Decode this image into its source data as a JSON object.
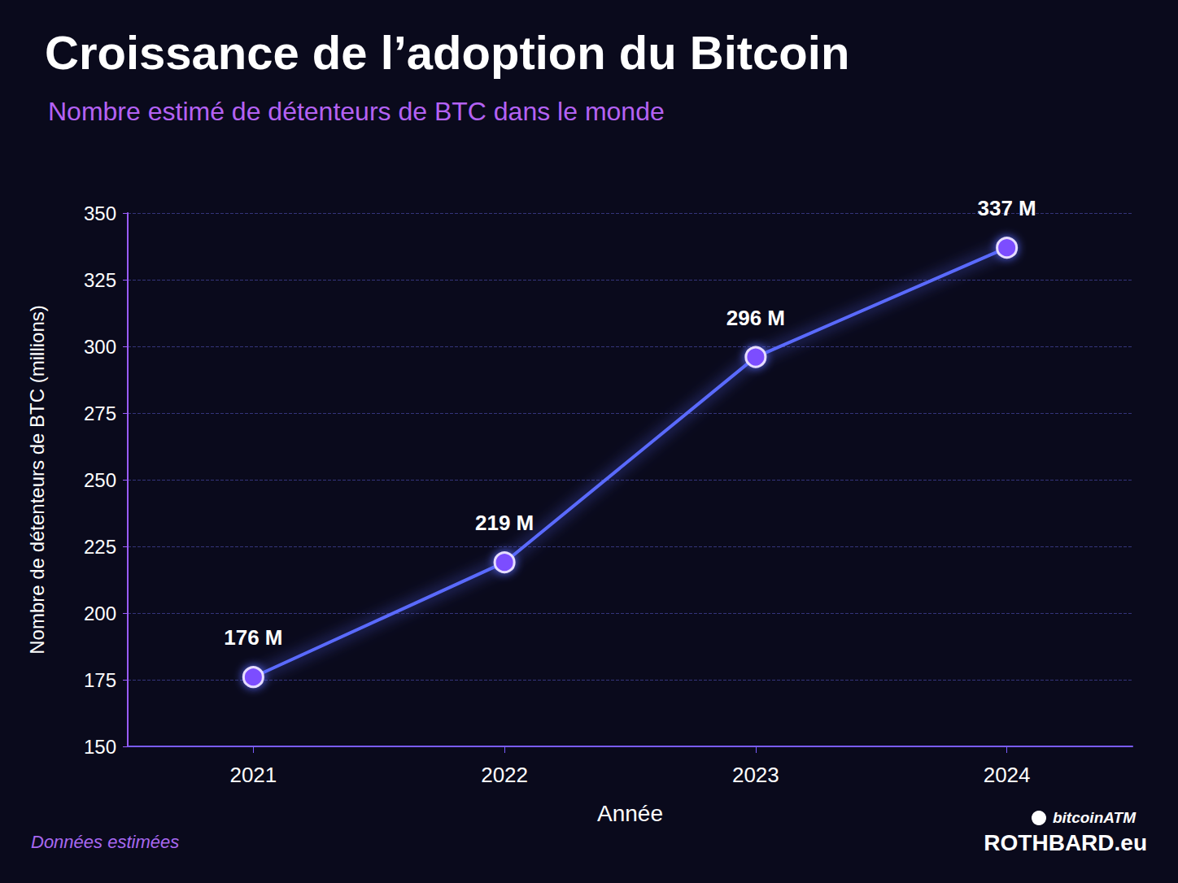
{
  "chart_data": {
    "type": "line",
    "title": "Croissance de l’adoption du Bitcoin",
    "subtitle": "Nombre estimé de détenteurs de BTC dans le monde",
    "x_label": "Année",
    "y_label": "Nombre de détenteurs de BTC (millions)",
    "categories": [
      "2021",
      "2022",
      "2023",
      "2024"
    ],
    "values": [
      176,
      219,
      296,
      337
    ],
    "value_labels": [
      "176 M",
      "219 M",
      "296 M",
      "337 M"
    ],
    "data_labels": true,
    "color": "#5a6bff",
    "marker": "circle",
    "ylim": [
      150,
      350
    ],
    "yticks": [
      150,
      175,
      200,
      225,
      250,
      275,
      300,
      325,
      350
    ],
    "grid": true,
    "note": "Données estimées",
    "logo": [
      "bitcoinATM",
      "ROTHBARD.eu"
    ]
  }
}
